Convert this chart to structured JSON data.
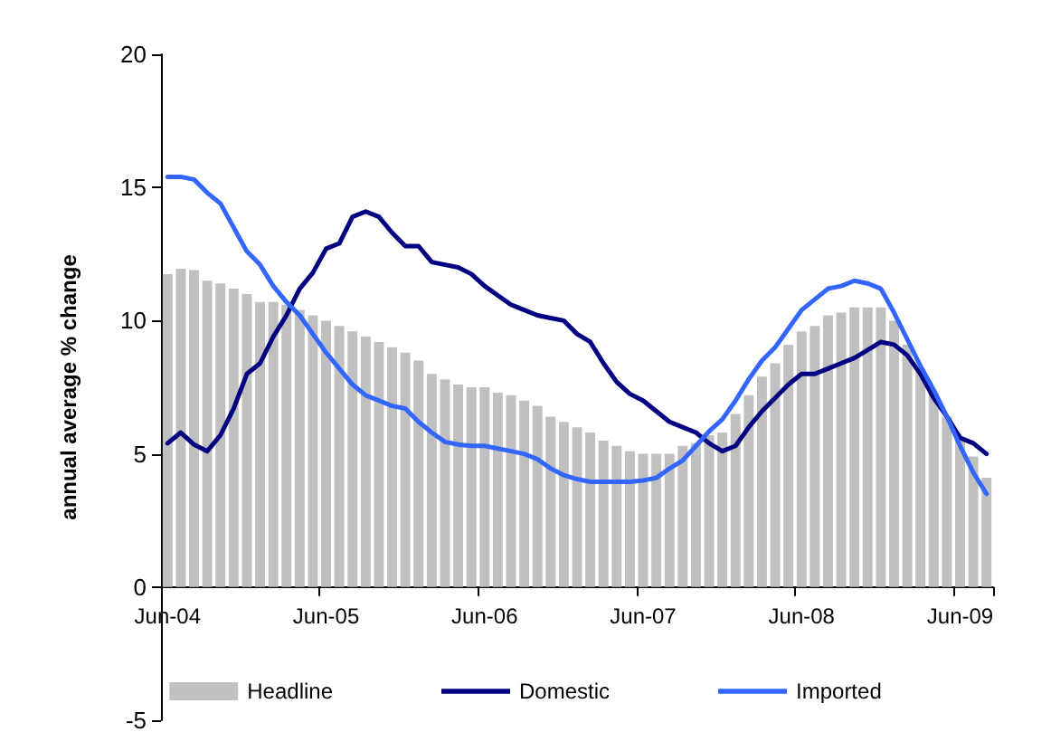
{
  "chart_data": {
    "type": "bar",
    "ylabel": "annual average % change",
    "categories": [
      "Jun-04",
      null,
      null,
      null,
      null,
      null,
      null,
      null,
      null,
      null,
      null,
      null,
      "Jun-05",
      null,
      null,
      null,
      null,
      null,
      null,
      null,
      null,
      null,
      null,
      null,
      "Jun-06",
      null,
      null,
      null,
      null,
      null,
      null,
      null,
      null,
      null,
      null,
      null,
      "Jun-07",
      null,
      null,
      null,
      null,
      null,
      null,
      null,
      null,
      null,
      null,
      null,
      "Jun-08",
      null,
      null,
      null,
      null,
      null,
      null,
      null,
      null,
      null,
      null,
      null,
      "Jun-09",
      null,
      null
    ],
    "series": [
      {
        "name": "Headline",
        "color": "#c0c0c0",
        "values": [
          11.75,
          11.95,
          11.9,
          11.5,
          11.4,
          11.2,
          11.0,
          10.7,
          10.7,
          10.6,
          10.4,
          10.2,
          10.0,
          9.8,
          9.6,
          9.4,
          9.2,
          9.0,
          8.8,
          8.5,
          8.0,
          7.8,
          7.6,
          7.5,
          7.5,
          7.3,
          7.2,
          7.0,
          6.8,
          6.4,
          6.2,
          6.0,
          5.8,
          5.5,
          5.3,
          5.1,
          5.0,
          5.0,
          5.0,
          5.3,
          5.4,
          5.7,
          5.8,
          6.5,
          7.2,
          7.9,
          8.4,
          9.1,
          9.6,
          9.8,
          10.2,
          10.3,
          10.5,
          10.5,
          10.5,
          10.0,
          9.1,
          8.2,
          7.3,
          6.4,
          5.6,
          4.9,
          4.1
        ]
      },
      {
        "name": "Domestic",
        "type": "line",
        "color": "#000080",
        "values": [
          5.4,
          5.8,
          5.35,
          5.1,
          5.7,
          6.7,
          8.0,
          8.4,
          9.4,
          10.2,
          11.2,
          11.8,
          12.7,
          12.9,
          13.9,
          14.1,
          13.9,
          13.3,
          12.8,
          12.8,
          12.2,
          12.1,
          12.0,
          11.75,
          11.3,
          10.95,
          10.6,
          10.4,
          10.2,
          10.1,
          10.0,
          9.5,
          9.2,
          8.4,
          7.7,
          7.25,
          7.0,
          6.6,
          6.2,
          6.0,
          5.8,
          5.4,
          5.1,
          5.3,
          6.0,
          6.6,
          7.1,
          7.6,
          8.0,
          8.0,
          8.2,
          8.4,
          8.6,
          8.9,
          9.2,
          9.1,
          8.7,
          8.0,
          7.1,
          6.4,
          5.6,
          5.4,
          5.0
        ]
      },
      {
        "name": "Imported",
        "type": "line",
        "color": "#3366ff",
        "values": [
          15.4,
          15.4,
          15.3,
          14.8,
          14.4,
          13.5,
          12.6,
          12.1,
          11.3,
          10.7,
          10.2,
          9.5,
          8.8,
          8.2,
          7.6,
          7.2,
          7.0,
          6.8,
          6.7,
          6.2,
          5.8,
          5.45,
          5.35,
          5.3,
          5.3,
          5.2,
          5.1,
          5.0,
          4.8,
          4.45,
          4.2,
          4.05,
          3.95,
          3.95,
          3.95,
          3.95,
          4.0,
          4.1,
          4.45,
          4.75,
          5.3,
          5.85,
          6.3,
          7.0,
          7.8,
          8.5,
          9.0,
          9.7,
          10.4,
          10.8,
          11.2,
          11.3,
          11.5,
          11.4,
          11.2,
          10.3,
          9.3,
          8.3,
          7.4,
          6.4,
          5.3,
          4.3,
          3.5
        ]
      }
    ],
    "ylim": [
      -5,
      20
    ],
    "yticks": [
      -5,
      0,
      5,
      10,
      15,
      20
    ],
    "grid": false,
    "legend": "bottom",
    "marker": "none",
    "line_style": "solid"
  }
}
